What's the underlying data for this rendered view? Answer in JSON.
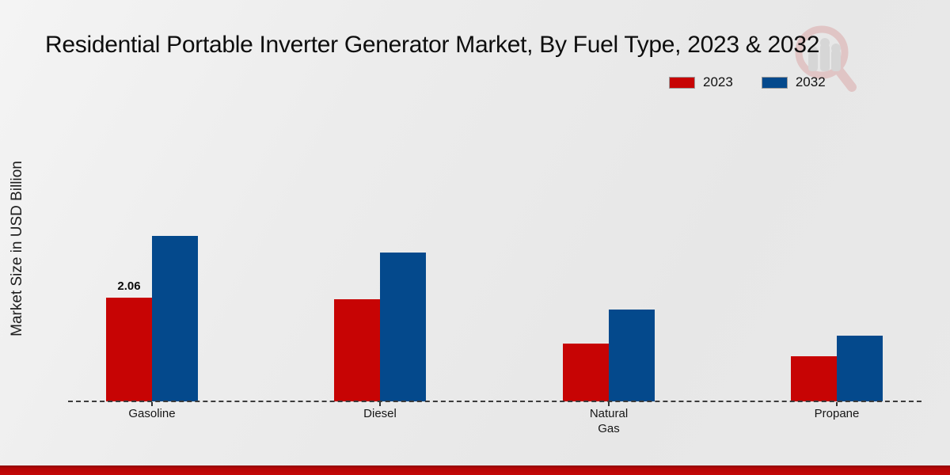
{
  "page": {
    "watermark_icon": "magnifier-bar-chart-logo"
  },
  "chart_data": {
    "type": "bar",
    "title": "Residential Portable Inverter Generator Market, By Fuel Type, 2023 & 2032",
    "xlabel": "",
    "ylabel": "Market Size in USD Billion",
    "categories": [
      "Gasoline",
      "Diesel",
      "Natural Gas",
      "Propane"
    ],
    "series": [
      {
        "name": "2023",
        "color": "#c70404",
        "values": [
          2.06,
          2.03,
          1.14,
          0.89
        ]
      },
      {
        "name": "2032",
        "color": "#04498c",
        "values": [
          3.29,
          2.96,
          1.83,
          1.31
        ]
      }
    ],
    "data_labels": [
      {
        "series": "2023",
        "category": "Gasoline",
        "text": "2.06"
      }
    ],
    "ylim": [
      0,
      3.5
    ],
    "grid": false,
    "legend_position": "top-right",
    "baseline_style": "dashed",
    "accent_strip_color": "#b50606"
  }
}
